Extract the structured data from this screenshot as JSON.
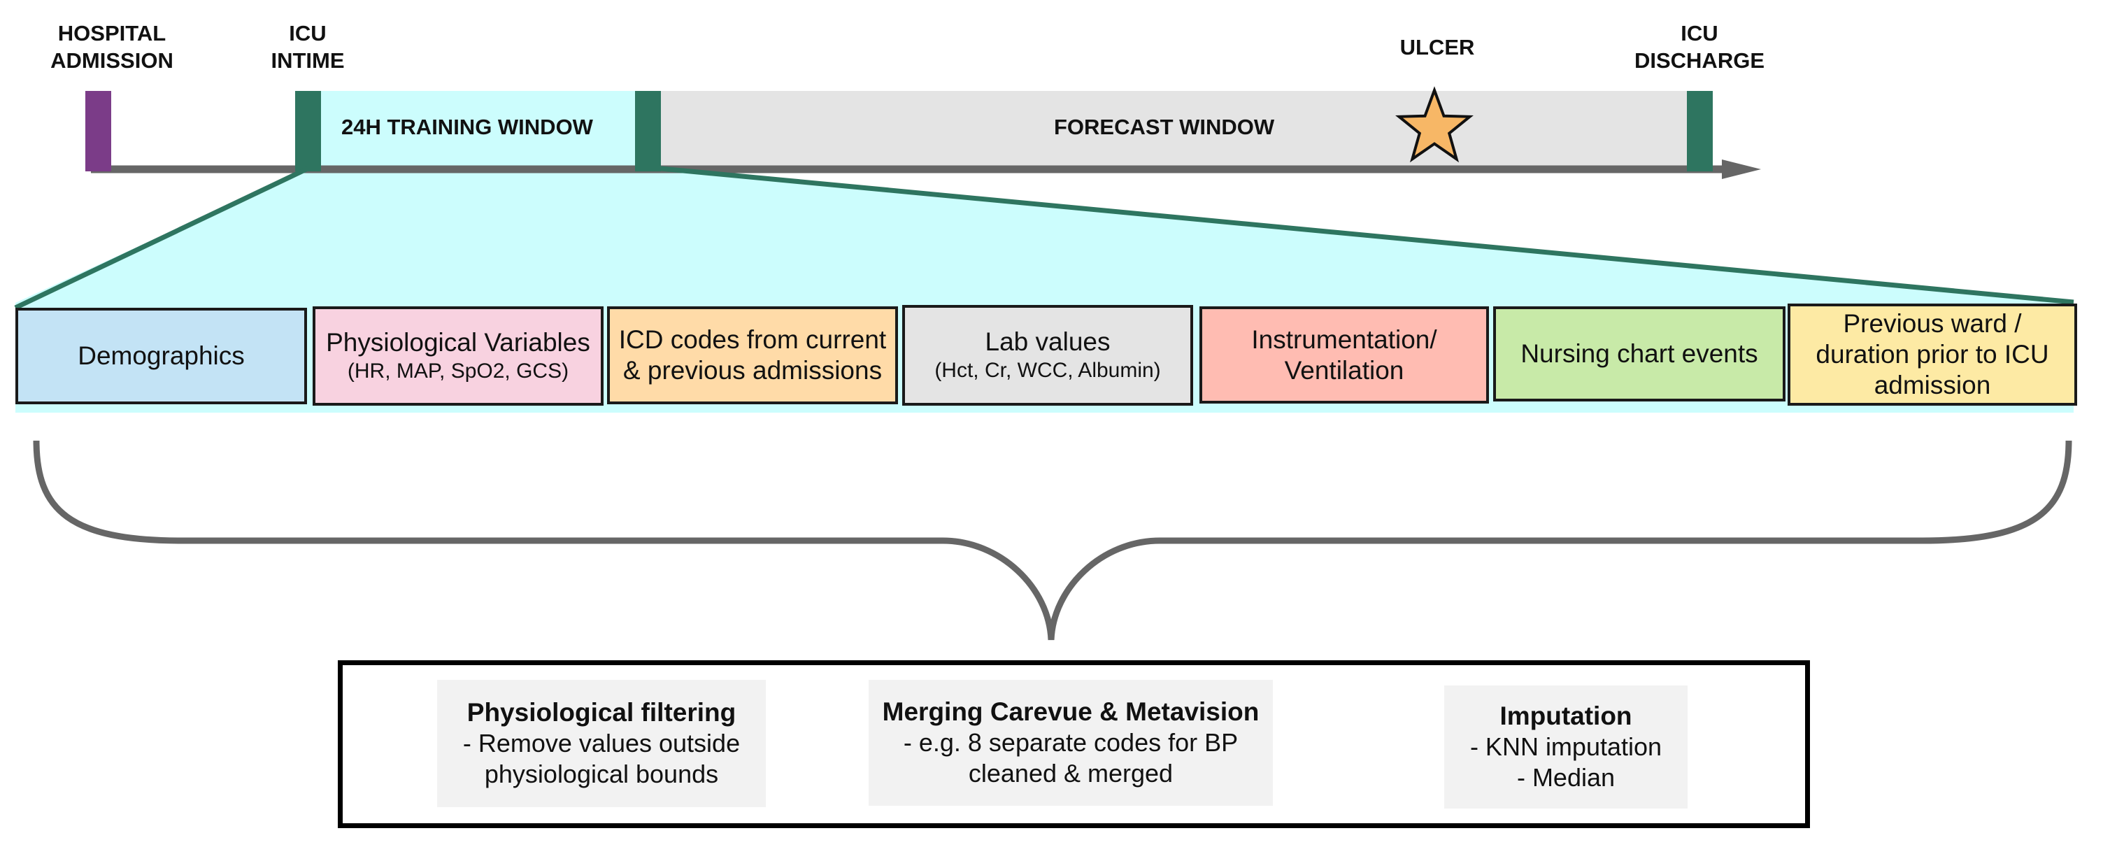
{
  "timeline": {
    "hospital_admission": "HOSPITAL\nADMISSION",
    "icu_intime": "ICU\nINTIME",
    "ulcer": "ULCER",
    "icu_discharge": "ICU\nDISCHARGE",
    "training_window": "24H TRAINING WINDOW",
    "forecast_window": "FORECAST WINDOW"
  },
  "categories": [
    {
      "title": "Demographics",
      "sub": "",
      "color": "#c3e3f5"
    },
    {
      "title": "Physiological Variables",
      "sub": "(HR, MAP, SpO2, GCS)",
      "color": "#f8d2e0"
    },
    {
      "title": "ICD codes from current\n& previous admissions",
      "sub": "",
      "color": "#ffdba8"
    },
    {
      "title": "Lab values",
      "sub": "(Hct, Cr, WCC, Albumin)",
      "color": "#e4e4e4"
    },
    {
      "title": "Instrumentation/\nVentilation",
      "sub": "",
      "color": "#ffbcb2"
    },
    {
      "title": "Nursing chart events",
      "sub": "",
      "color": "#c8eaa8"
    },
    {
      "title": "Previous ward /\nduration prior to ICU\nadmission",
      "sub": "",
      "color": "#fdeaa4"
    }
  ],
  "processing": [
    {
      "heading": "Physiological filtering",
      "body": "- Remove values outside\nphysiological bounds"
    },
    {
      "heading": "Merging Carevue & Metavision",
      "body": "- e.g. 8 separate codes for BP\ncleaned & merged"
    },
    {
      "heading": "Imputation",
      "body": "- KNN imputation\n- Median"
    }
  ],
  "colors": {
    "admission_marker": "#7b3c88",
    "icu_marker": "#2e7560",
    "training_fill": "#ccfdfd",
    "forecast_fill": "#e4e4e4",
    "axis": "#666666",
    "star": "#f7b766"
  }
}
